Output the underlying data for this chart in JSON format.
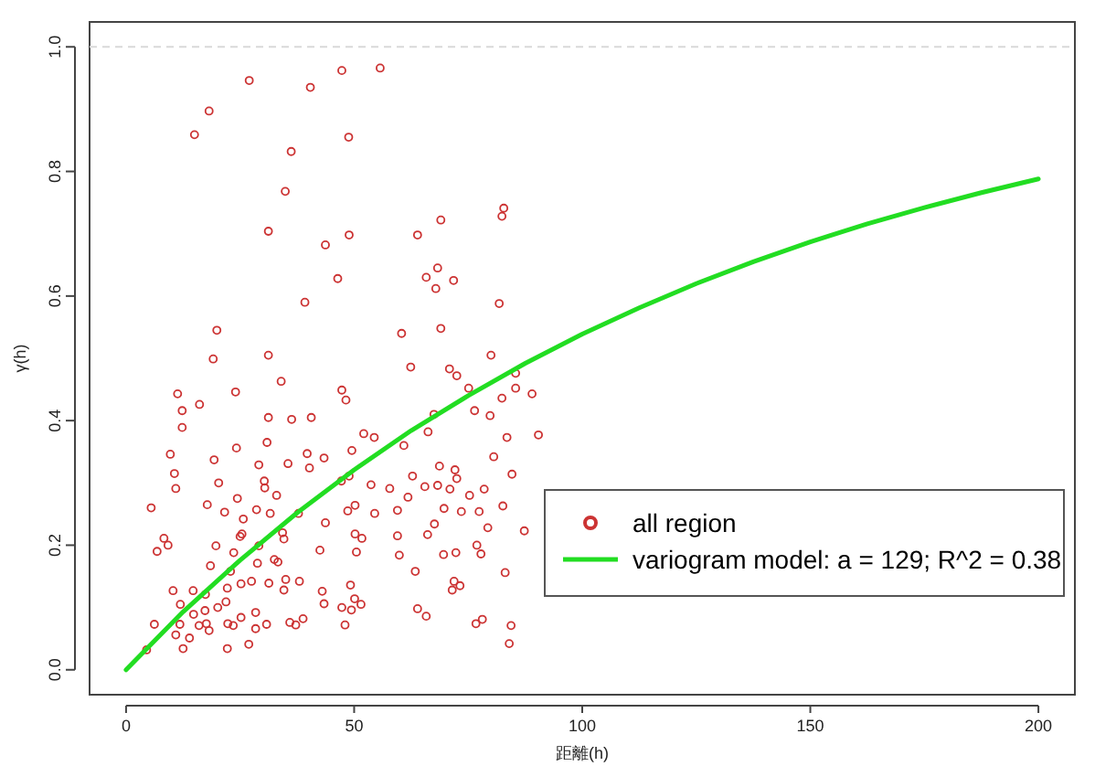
{
  "chart_data": {
    "type": "scatter",
    "xlabel": "距離(h)",
    "ylabel": "γ(h)",
    "xlim": [
      -8,
      208
    ],
    "ylim": [
      -0.04,
      1.04
    ],
    "xticks": [
      0,
      50,
      100,
      150,
      200
    ],
    "yticks": [
      {
        "value": 0,
        "label": "0.0"
      },
      {
        "value": 0.2,
        "label": "0.2"
      },
      {
        "value": 0.4,
        "label": "0.4"
      },
      {
        "value": 0.6,
        "label": "0.6"
      },
      {
        "value": 0.8,
        "label": "0.8"
      },
      {
        "value": 1,
        "label": "1.0"
      }
    ],
    "grid": false,
    "legend": "bottom right",
    "ref_lines": [
      {
        "axis": "y",
        "value": 1,
        "color": "#d9d9d9",
        "line_style": "dashed"
      }
    ],
    "series": [
      {
        "name": "all region",
        "marker": "circle",
        "color": "#cc3333",
        "x": [
          27.0,
          40.4,
          47.3,
          55.7,
          18.2,
          15.0,
          48.8,
          36.2,
          34.9,
          31.2,
          48.9,
          43.7,
          63.9,
          69.0,
          82.8,
          82.4,
          68.3,
          65.8,
          71.8,
          67.9,
          46.4,
          39.2,
          81.8,
          19.9,
          60.4,
          69.0,
          19.1,
          31.2,
          80.0,
          62.4,
          70.9,
          72.5,
          85.4,
          11.3,
          24.0,
          34.0,
          47.3,
          48.2,
          16.1,
          12.3,
          12.3,
          31.2,
          36.3,
          40.6,
          52.1,
          54.4,
          30.9,
          24.2,
          9.7,
          19.3,
          35.5,
          39.7,
          43.4,
          40.2,
          49.5,
          60.9,
          66.2,
          67.5,
          75.1,
          76.4,
          79.8,
          82.4,
          83.5,
          85.4,
          89.0,
          90.4,
          80.6,
          84.6,
          10.6,
          10.9,
          20.3,
          29.1,
          30.3,
          30.4,
          33.0,
          24.4,
          17.8,
          5.5,
          21.6,
          25.7,
          28.6,
          31.6,
          48.9,
          47.2,
          53.7,
          57.8,
          62.8,
          68.7,
          72.1,
          72.5,
          65.5,
          68.3,
          71.0,
          75.3,
          78.5,
          82.6,
          87.3,
          73.5,
          77.4,
          79.3,
          69.7,
          61.8,
          59.5,
          54.5,
          50.2,
          48.6,
          43.7,
          37.8,
          50.2,
          51.7,
          67.6,
          66.1,
          59.5,
          34.3,
          34.6,
          25.0,
          25.4,
          8.3,
          9.2,
          6.8,
          19.7,
          23.6,
          29.1,
          42.5,
          50.5,
          59.9,
          69.6,
          72.3,
          76.9,
          77.8,
          18.5,
          32.5,
          33.3,
          28.8,
          22.9,
          63.4,
          83.1,
          71.9,
          73.2,
          71.5,
          10.3,
          14.7,
          17.4,
          22.2,
          25.2,
          27.5,
          31.3,
          35.0,
          34.6,
          38.0,
          43.0,
          43.4,
          49.2,
          50.1,
          51.5,
          47.3,
          49.4,
          21.9,
          20.1,
          11.9,
          17.3,
          14.8,
          25.2,
          28.4,
          35.9,
          38.8,
          37.2,
          30.8,
          28.4,
          23.5,
          22.3,
          17.6,
          16.0,
          11.8,
          6.2,
          18.2,
          48.0,
          63.9,
          65.8,
          76.7,
          78.1,
          84.4,
          84.0,
          13.9,
          10.9,
          12.5,
          22.2,
          26.9,
          4.5
        ],
        "values": [
          0.946,
          0.935,
          0.962,
          0.966,
          0.897,
          0.859,
          0.855,
          0.832,
          0.768,
          0.704,
          0.698,
          0.682,
          0.698,
          0.722,
          0.741,
          0.728,
          0.645,
          0.63,
          0.625,
          0.612,
          0.628,
          0.59,
          0.588,
          0.545,
          0.54,
          0.548,
          0.499,
          0.505,
          0.505,
          0.486,
          0.483,
          0.472,
          0.476,
          0.443,
          0.446,
          0.463,
          0.449,
          0.433,
          0.426,
          0.416,
          0.389,
          0.405,
          0.402,
          0.405,
          0.379,
          0.373,
          0.365,
          0.356,
          0.346,
          0.337,
          0.331,
          0.347,
          0.34,
          0.324,
          0.352,
          0.36,
          0.382,
          0.41,
          0.452,
          0.416,
          0.408,
          0.436,
          0.373,
          0.452,
          0.443,
          0.377,
          0.342,
          0.314,
          0.315,
          0.291,
          0.3,
          0.329,
          0.303,
          0.292,
          0.28,
          0.275,
          0.265,
          0.26,
          0.253,
          0.242,
          0.257,
          0.251,
          0.311,
          0.303,
          0.297,
          0.291,
          0.311,
          0.327,
          0.321,
          0.307,
          0.294,
          0.296,
          0.29,
          0.28,
          0.29,
          0.263,
          0.223,
          0.254,
          0.254,
          0.228,
          0.259,
          0.277,
          0.256,
          0.251,
          0.264,
          0.255,
          0.236,
          0.251,
          0.218,
          0.211,
          0.234,
          0.217,
          0.215,
          0.22,
          0.21,
          0.214,
          0.218,
          0.211,
          0.2,
          0.19,
          0.199,
          0.188,
          0.199,
          0.192,
          0.189,
          0.184,
          0.185,
          0.188,
          0.2,
          0.186,
          0.167,
          0.177,
          0.173,
          0.171,
          0.158,
          0.158,
          0.156,
          0.142,
          0.135,
          0.128,
          0.127,
          0.127,
          0.121,
          0.131,
          0.138,
          0.142,
          0.139,
          0.145,
          0.128,
          0.142,
          0.126,
          0.106,
          0.136,
          0.114,
          0.105,
          0.1,
          0.096,
          0.109,
          0.1,
          0.105,
          0.095,
          0.089,
          0.084,
          0.092,
          0.076,
          0.082,
          0.072,
          0.073,
          0.066,
          0.071,
          0.074,
          0.074,
          0.071,
          0.073,
          0.073,
          0.063,
          0.072,
          0.098,
          0.086,
          0.074,
          0.081,
          0.071,
          0.042,
          0.051,
          0.056,
          0.034,
          0.034,
          0.041,
          0.032
        ]
      },
      {
        "name": "variogram model: a = 129; R^2 = 0.38",
        "type": "line",
        "marker": "none",
        "line_style": "solid",
        "color": "#22dd22",
        "x": [
          0,
          12.5,
          25,
          37.5,
          50,
          62.5,
          75,
          87.5,
          100,
          112.5,
          125,
          137.5,
          150,
          162.5,
          175,
          187.5,
          200
        ],
        "values": [
          0,
          0.093,
          0.176,
          0.252,
          0.321,
          0.384,
          0.44,
          0.492,
          0.539,
          0.581,
          0.62,
          0.655,
          0.687,
          0.716,
          0.742,
          0.766,
          0.788
        ]
      }
    ]
  }
}
